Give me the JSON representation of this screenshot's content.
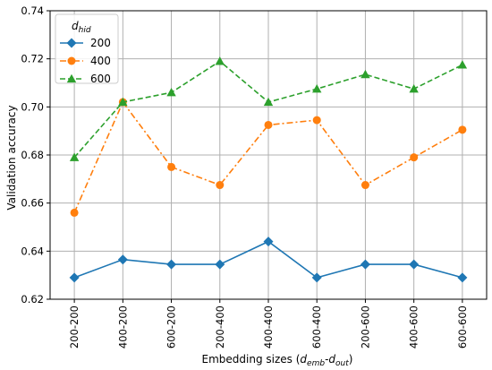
{
  "chart_data": {
    "type": "line",
    "categories": [
      "200-200",
      "400-200",
      "600-200",
      "200-400",
      "400-400",
      "600-400",
      "200-600",
      "400-600",
      "600-600"
    ],
    "series": [
      {
        "name": "200",
        "color": "#1f77b4",
        "marker": "diamond",
        "linestyle": "solid",
        "values": [
          0.629,
          0.6365,
          0.6345,
          0.6345,
          0.644,
          0.629,
          0.6345,
          0.6345,
          0.629
        ]
      },
      {
        "name": "400",
        "color": "#ff7f0e",
        "marker": "circle",
        "linestyle": "dashdot",
        "values": [
          0.656,
          0.702,
          0.675,
          0.6675,
          0.6925,
          0.6945,
          0.6675,
          0.679,
          0.6905
        ]
      },
      {
        "name": "600",
        "color": "#2ca02c",
        "marker": "triangle",
        "linestyle": "dashed",
        "values": [
          0.679,
          0.702,
          0.706,
          0.719,
          0.702,
          0.7075,
          0.7135,
          0.7075,
          0.7175
        ]
      }
    ],
    "ylim": [
      0.62,
      0.74
    ],
    "yticks": [
      "0.62",
      "0.64",
      "0.66",
      "0.68",
      "0.70",
      "0.72",
      "0.74"
    ],
    "ylabel": "Validation accuracy",
    "xlabel": {
      "text": "Embedding sizes (",
      "sub1": "emb",
      "mid": "-",
      "d": "d",
      "sub2": "out",
      "end": ")"
    },
    "legend": {
      "title": "d",
      "title_sub": "hid",
      "placement": "top-left"
    },
    "grid": true
  }
}
